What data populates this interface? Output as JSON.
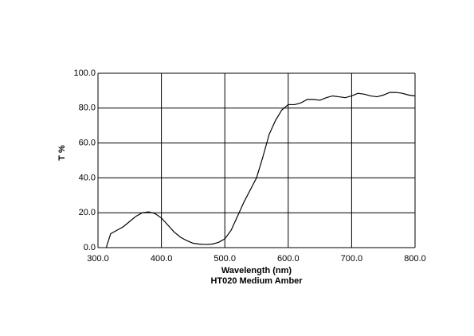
{
  "chart_data": {
    "type": "line",
    "title": "HT020 Medium Amber",
    "x_label": "Wavelength (nm)",
    "y_label": "T %",
    "x": [
      313,
      320,
      330,
      340,
      350,
      360,
      370,
      380,
      390,
      400,
      410,
      420,
      430,
      440,
      450,
      460,
      470,
      480,
      490,
      500,
      510,
      520,
      530,
      540,
      550,
      560,
      570,
      580,
      590,
      600,
      610,
      620,
      630,
      640,
      650,
      660,
      670,
      680,
      690,
      700,
      710,
      720,
      730,
      740,
      750,
      760,
      770,
      780,
      790,
      800
    ],
    "series": [
      {
        "color": "#000000",
        "values": [
          0,
          8,
          10,
          12,
          15,
          18,
          20,
          20.5,
          19.5,
          17,
          13,
          9,
          6,
          4,
          2.5,
          2,
          1.8,
          2,
          3,
          5,
          10,
          18,
          26,
          33,
          40,
          52,
          65,
          73,
          79,
          82,
          82,
          83,
          85,
          85,
          84.5,
          86,
          87,
          86.5,
          86,
          87,
          88.5,
          88,
          87,
          86.5,
          87.5,
          89,
          89,
          88.5,
          87.5,
          87
        ]
      }
    ],
    "xlim": [
      300,
      800
    ],
    "ylim": [
      0,
      100
    ],
    "xticks": [
      {
        "value": 300,
        "label": "300.0"
      },
      {
        "value": 400,
        "label": "400.0"
      },
      {
        "value": 500,
        "label": "500.0"
      },
      {
        "value": 600,
        "label": "600.0"
      },
      {
        "value": 700,
        "label": "700.0"
      },
      {
        "value": 800,
        "label": "800.0"
      }
    ],
    "yticks": [
      {
        "value": 0,
        "label": "0.0"
      },
      {
        "value": 20,
        "label": "20.0"
      },
      {
        "value": 40,
        "label": "40.0"
      },
      {
        "value": 60,
        "label": "60.0"
      },
      {
        "value": 80,
        "label": "80.0"
      },
      {
        "value": 100,
        "label": "100.0"
      }
    ],
    "grid": true
  }
}
